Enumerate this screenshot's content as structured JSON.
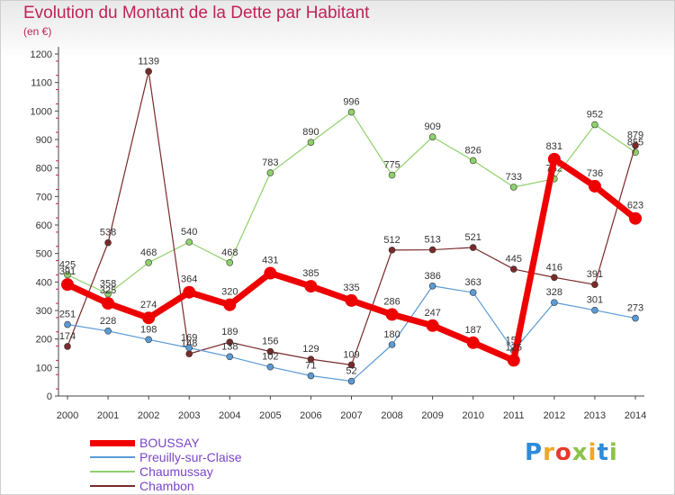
{
  "header": {
    "title": "Evolution du Montant de la Dette par Habitant",
    "subtitle": "(en €)"
  },
  "logo": {
    "text": "Proxiti",
    "colors": [
      "#2e8bd8",
      "#f2a623",
      "#e63a2b",
      "#8bc34a",
      "#f2a623",
      "#2e8bd8",
      "#8bc34a"
    ]
  },
  "chart_data": {
    "type": "line",
    "x": [
      "2000",
      "2001",
      "2002",
      "2003",
      "2004",
      "2005",
      "2006",
      "2007",
      "2008",
      "2009",
      "2010",
      "2011",
      "2012",
      "2013",
      "2014"
    ],
    "ylim": [
      0,
      1200
    ],
    "yticks": [
      0,
      100,
      200,
      300,
      400,
      500,
      600,
      700,
      800,
      900,
      1000,
      1100,
      1200
    ],
    "grid": false,
    "legend": "bottom-left",
    "series": [
      {
        "name": "Chaumussay",
        "color": "#8fd16b",
        "width": 1.2,
        "marker": 3.5,
        "values": [
          425,
          358,
          468,
          540,
          468,
          783,
          890,
          996,
          775,
          909,
          826,
          733,
          762,
          952,
          855
        ]
      },
      {
        "name": "Chambon",
        "color": "#7a2a2a",
        "width": 1.2,
        "marker": 3.5,
        "values": [
          174,
          538,
          1139,
          148,
          189,
          156,
          129,
          109,
          512,
          513,
          521,
          445,
          416,
          391,
          879
        ]
      },
      {
        "name": "Preuilly-sur-Claise",
        "color": "#5b9bd5",
        "width": 1.2,
        "marker": 3.5,
        "values": [
          251,
          228,
          198,
          169,
          138,
          102,
          71,
          52,
          180,
          386,
          363,
          159,
          328,
          301,
          273
        ]
      },
      {
        "name": "BOUSSAY",
        "color": "#ee0000",
        "width": 7,
        "marker": 7,
        "values": [
          391,
          325,
          274,
          364,
          320,
          431,
          385,
          335,
          286,
          247,
          187,
          125,
          831,
          736,
          623
        ]
      }
    ],
    "legend_order": [
      "BOUSSAY",
      "Preuilly-sur-Claise",
      "Chaumussay",
      "Chambon"
    ]
  }
}
